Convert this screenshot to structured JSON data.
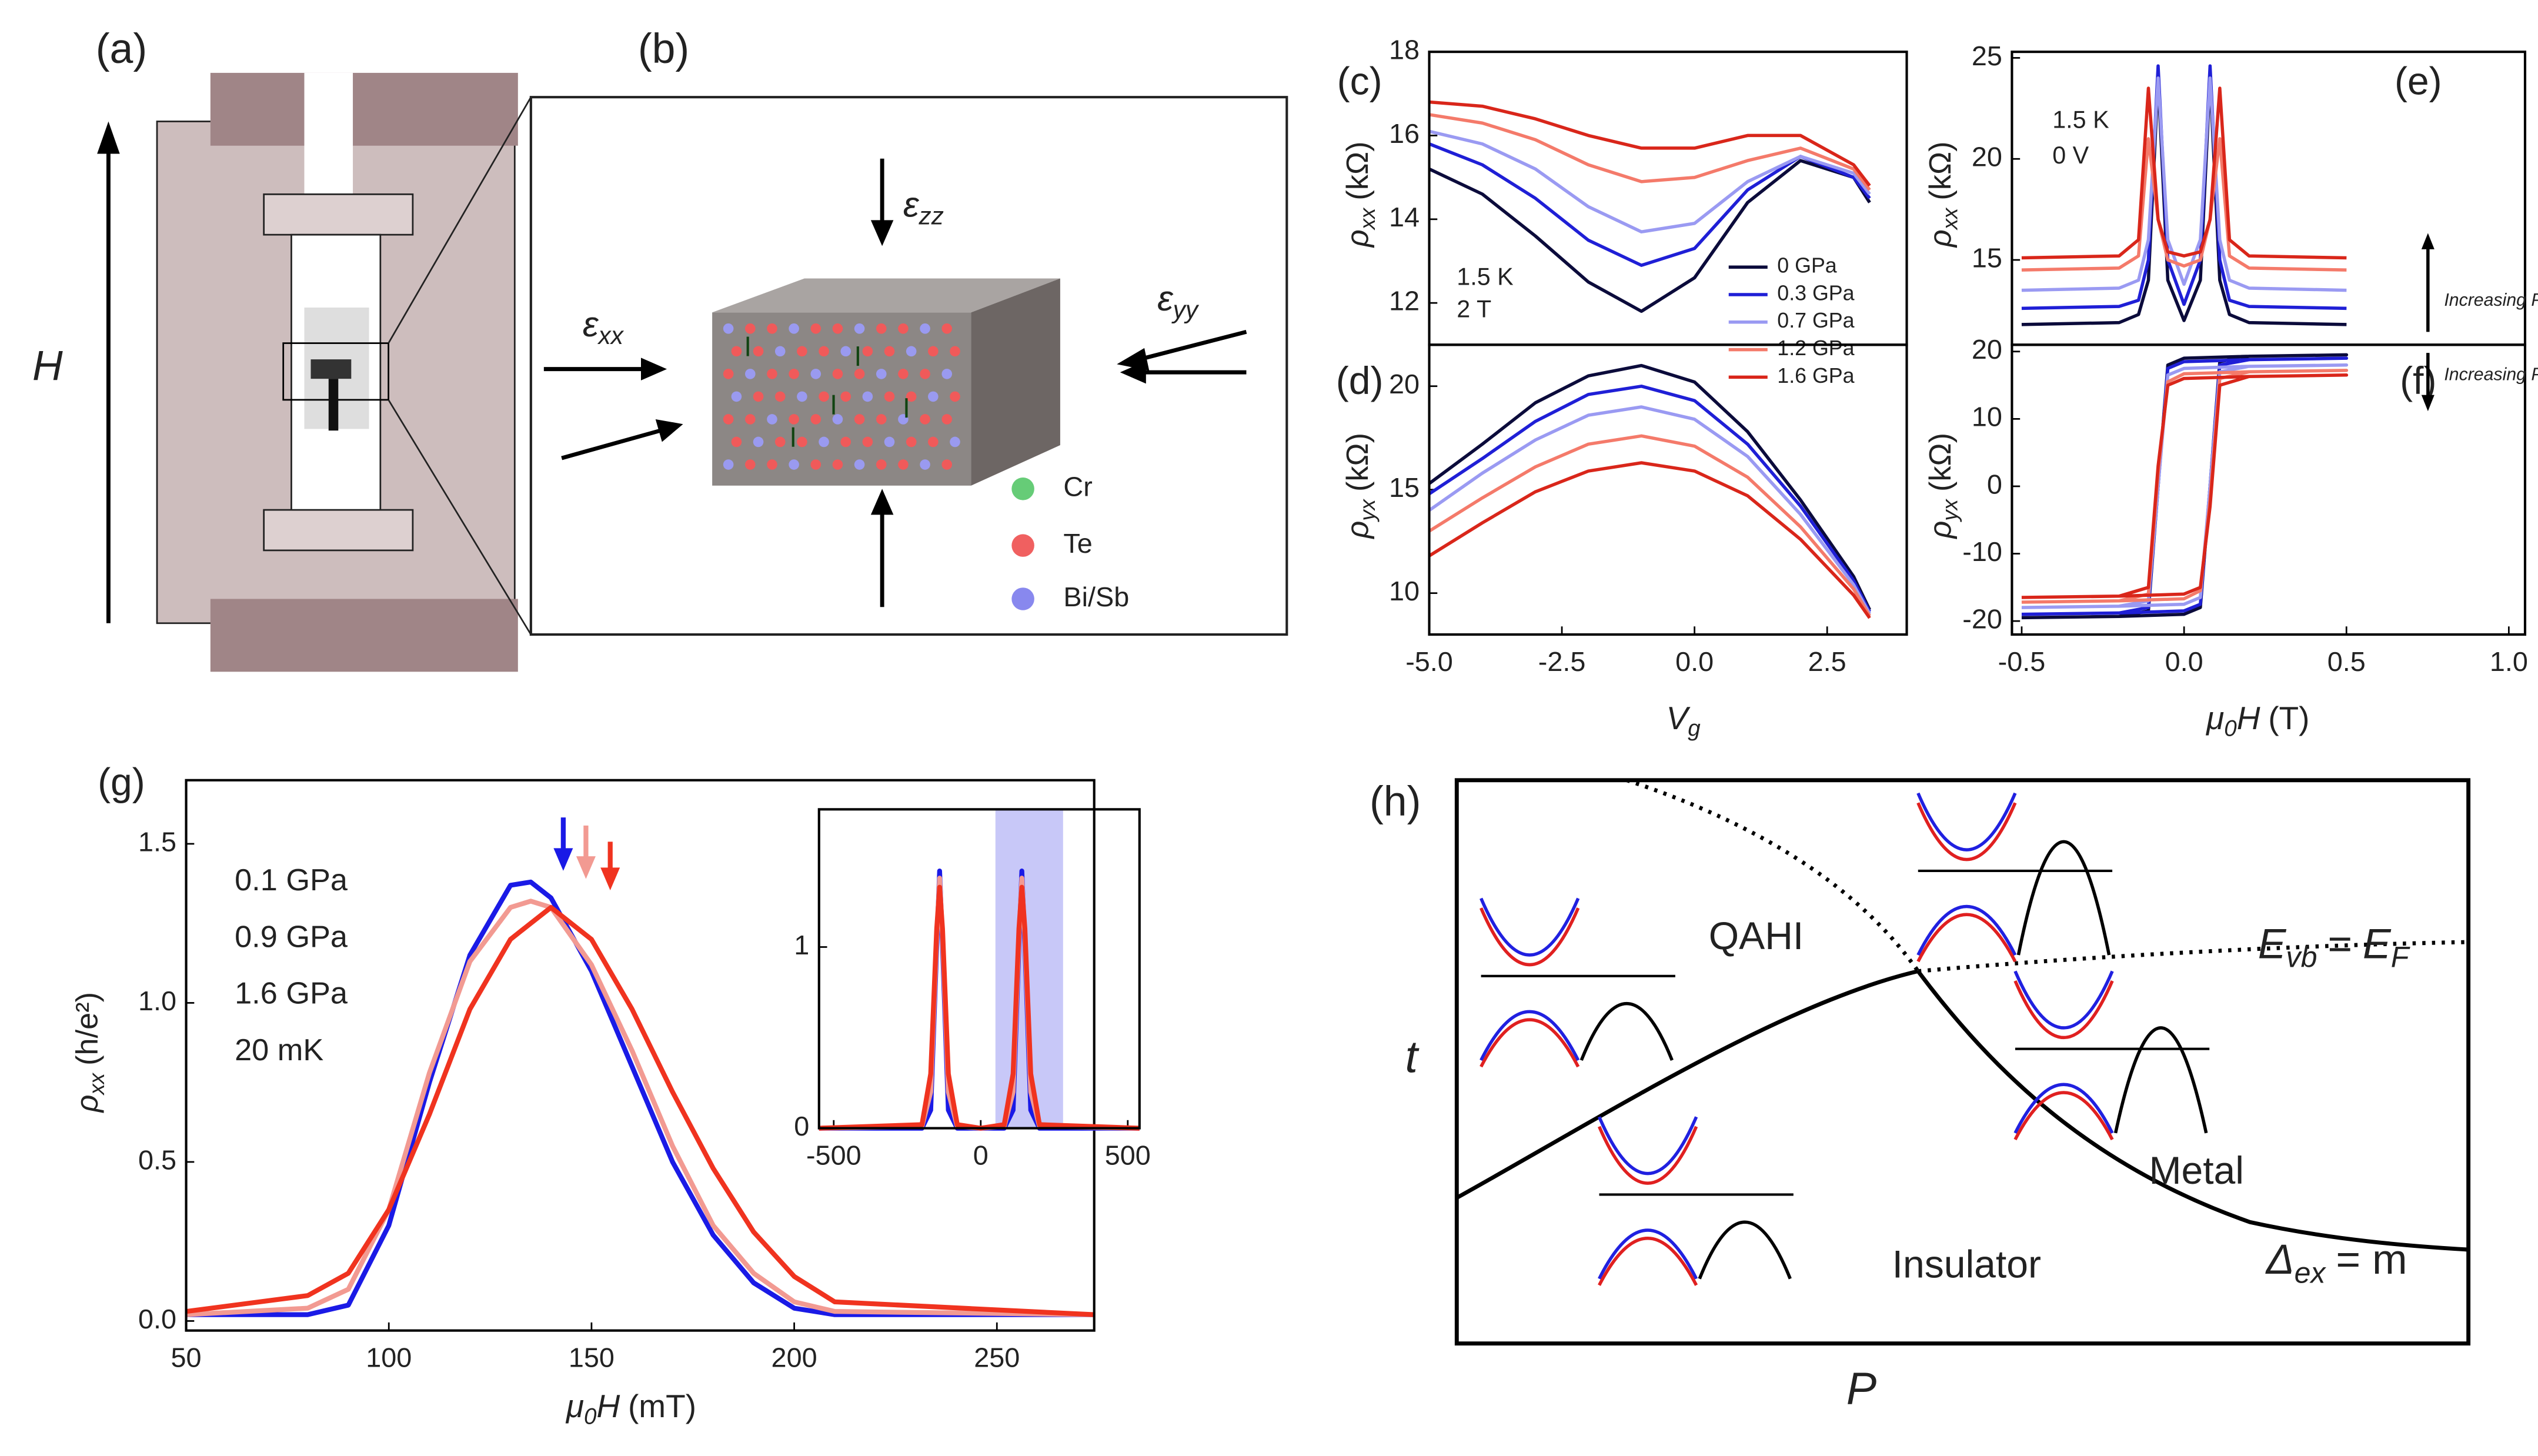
{
  "figure": {
    "a": {
      "label": "(a)",
      "field": "H"
    },
    "b": {
      "label": "(b)",
      "strain_zz": [
        {
          "text": "ε",
          "style": "italic"
        },
        {
          "text": "zz",
          "style": "sub"
        }
      ],
      "strain_xx": [
        {
          "text": "ε",
          "style": "italic"
        },
        {
          "text": "xx",
          "style": "sub"
        }
      ],
      "strain_yy": [
        {
          "text": "ε",
          "style": "italic"
        },
        {
          "text": "yy",
          "style": "sub"
        }
      ],
      "elements": [
        "Cr",
        "Te",
        "Bi/Sb"
      ]
    },
    "h": {
      "label": "(h)",
      "phases": [
        "QAHI",
        "Metal",
        "Insulator"
      ],
      "fermi": [
        {
          "text": "E",
          "style": "italic"
        },
        {
          "text": "vb",
          "style": "sub"
        },
        {
          "text": "="
        },
        {
          "text": "E",
          "style": "italic"
        },
        {
          "text": "F",
          "style": "sub"
        }
      ],
      "gap": [
        {
          "text": "Δ",
          "style": "italic"
        },
        {
          "text": "ex",
          "style": "sub"
        },
        {
          "text": "= m"
        }
      ],
      "ylabel": "t",
      "xlabel": "P"
    }
  },
  "chart_data": [
    {
      "type": "line",
      "panel": "(c)",
      "ylabel": [
        {
          "text": "ρ",
          "style": "italic"
        },
        {
          "text": "xx",
          "style": "sub"
        },
        {
          "text": "(kΩ)"
        }
      ],
      "annotations": [
        "1.5 K",
        "2 T"
      ],
      "legend": "lower right",
      "xlim": [
        -5,
        4
      ],
      "ylim": [
        11,
        18
      ],
      "yticks": [
        12,
        14,
        16,
        18
      ],
      "x": [
        -5,
        -4,
        -3,
        -2,
        -1,
        0,
        1,
        2,
        3,
        3.3
      ],
      "series": [
        {
          "name": "0 GPa",
          "color": "#0b0b3b",
          "values": [
            15.2,
            14.6,
            13.6,
            12.5,
            11.8,
            12.6,
            14.4,
            15.4,
            15.0,
            14.4
          ]
        },
        {
          "name": "0.3 GPa",
          "color": "#1f1fd6",
          "values": [
            15.8,
            15.3,
            14.5,
            13.5,
            12.9,
            13.3,
            14.7,
            15.5,
            15.0,
            14.5
          ]
        },
        {
          "name": "0.7 GPa",
          "color": "#9a9af2",
          "values": [
            16.1,
            15.8,
            15.2,
            14.3,
            13.7,
            13.9,
            14.9,
            15.5,
            15.1,
            14.6
          ]
        },
        {
          "name": "1.2 GPa",
          "color": "#f47a6a",
          "values": [
            16.5,
            16.3,
            15.9,
            15.3,
            14.9,
            15.0,
            15.4,
            15.7,
            15.2,
            14.7
          ]
        },
        {
          "name": "1.6 GPa",
          "color": "#d9261a",
          "values": [
            16.8,
            16.7,
            16.4,
            16.0,
            15.7,
            15.7,
            16.0,
            16.0,
            15.3,
            14.8
          ]
        }
      ]
    },
    {
      "type": "line",
      "panel": "(d)",
      "ylabel": [
        {
          "text": "ρ",
          "style": "italic"
        },
        {
          "text": "yx",
          "style": "sub"
        },
        {
          "text": "(kΩ)"
        }
      ],
      "xlabel": [
        {
          "text": "V",
          "style": "italic"
        },
        {
          "text": "g",
          "style": "sub"
        }
      ],
      "xlim": [
        -5,
        4
      ],
      "ylim": [
        8,
        22
      ],
      "xticks": [
        {
          "value": -5,
          "label": "-5.0"
        },
        {
          "value": -2.5,
          "label": "-2.5"
        },
        {
          "value": 0,
          "label": "0.0"
        },
        {
          "value": 2.5,
          "label": "2.5"
        }
      ],
      "yticks": [
        10,
        15,
        20
      ],
      "x": [
        -5,
        -4,
        -3,
        -2,
        -1,
        0,
        1,
        2,
        3,
        3.3
      ],
      "series": [
        {
          "color": "#0b0b3b",
          "values": [
            15.3,
            17.2,
            19.2,
            20.5,
            21.0,
            20.2,
            17.8,
            14.5,
            10.8,
            9.2
          ]
        },
        {
          "color": "#1f1fd6",
          "values": [
            14.8,
            16.5,
            18.3,
            19.6,
            20.0,
            19.3,
            17.2,
            14.2,
            10.6,
            9.1
          ]
        },
        {
          "color": "#9a9af2",
          "values": [
            14.0,
            15.8,
            17.4,
            18.6,
            19.0,
            18.4,
            16.6,
            13.8,
            10.4,
            9.0
          ]
        },
        {
          "color": "#f47a6a",
          "values": [
            13.0,
            14.6,
            16.1,
            17.2,
            17.6,
            17.1,
            15.6,
            13.2,
            10.2,
            8.9
          ]
        },
        {
          "color": "#d9261a",
          "values": [
            11.8,
            13.4,
            14.9,
            15.9,
            16.3,
            15.9,
            14.7,
            12.6,
            9.9,
            8.8
          ]
        }
      ]
    },
    {
      "type": "line",
      "panel": "(e)",
      "ylabel": [
        {
          "text": "ρ",
          "style": "italic"
        },
        {
          "text": "xx",
          "style": "sub"
        },
        {
          "text": "(kΩ)"
        }
      ],
      "annotations": [
        "1.5 K",
        "0 V",
        "Increasing P"
      ],
      "xlim": [
        -0.53,
        1.05
      ],
      "ylim": [
        10.8,
        25.3
      ],
      "yticks": [
        15,
        20,
        25
      ],
      "x": [
        -0.5,
        -0.2,
        -0.14,
        -0.11,
        -0.08,
        -0.05,
        0,
        0.05,
        0.08,
        0.11,
        0.14,
        0.2,
        0.5
      ],
      "series": [
        {
          "color": "#0b0b3b",
          "values": [
            11.8,
            11.9,
            12.3,
            14,
            24,
            14,
            12,
            14,
            24,
            14,
            12.3,
            11.9,
            11.8
          ]
        },
        {
          "color": "#1f1fd6",
          "values": [
            12.6,
            12.7,
            13,
            15,
            24.6,
            15,
            12.8,
            15,
            24.6,
            15,
            13,
            12.7,
            12.6
          ]
        },
        {
          "color": "#9a9af2",
          "values": [
            13.5,
            13.6,
            14,
            16,
            24,
            16,
            13.8,
            16,
            24,
            16,
            14,
            13.6,
            13.5
          ]
        },
        {
          "color": "#f47a6a",
          "values": [
            14.5,
            14.6,
            15.2,
            21,
            17,
            15,
            14.7,
            15,
            17,
            21,
            15.2,
            14.6,
            14.5
          ]
        },
        {
          "color": "#d9261a",
          "values": [
            15.1,
            15.2,
            16,
            23.5,
            17,
            15.4,
            15.2,
            15.4,
            17,
            23.5,
            16,
            15.2,
            15.1
          ]
        }
      ]
    },
    {
      "type": "line",
      "panel": "(f)",
      "ylabel": [
        {
          "text": "ρ",
          "style": "italic"
        },
        {
          "text": "yx",
          "style": "sub"
        },
        {
          "text": "(kΩ)"
        }
      ],
      "xlabel": [
        {
          "text": "μ",
          "style": "italic"
        },
        {
          "text": "0",
          "style": "sub"
        },
        {
          "text": "H",
          "style": "italic"
        },
        {
          "text": "(T)"
        }
      ],
      "annotations": [
        "Increasing P"
      ],
      "xlim": [
        -0.53,
        1.05
      ],
      "ylim": [
        -22,
        21
      ],
      "xticks": [
        {
          "value": -0.5,
          "label": "-0.5"
        },
        {
          "value": 0,
          "label": "0.0"
        },
        {
          "value": 0.5,
          "label": "0.5"
        },
        {
          "value": 1,
          "label": "1.0"
        }
      ],
      "yticks": [
        -20,
        -10,
        0,
        10,
        20
      ],
      "x": [
        -0.5,
        -0.2,
        0,
        0.05,
        0.08,
        0.11,
        0.2,
        0.5,
        0.2,
        0,
        -0.05,
        -0.08,
        -0.11,
        -0.2,
        -0.5
      ],
      "series": [
        {
          "color": "#0b0b3b",
          "values": [
            -19.5,
            -19.3,
            -19,
            -18,
            0,
            18.5,
            19.3,
            19.5,
            19.3,
            19,
            18,
            0,
            -18.5,
            -19.3,
            -19.5
          ]
        },
        {
          "color": "#1f1fd6",
          "values": [
            -19,
            -18.8,
            -18.5,
            -17.5,
            0,
            18,
            18.8,
            19,
            18.8,
            18.5,
            17.5,
            0,
            -18,
            -18.8,
            -19
          ]
        },
        {
          "color": "#9a9af2",
          "values": [
            -18,
            -17.8,
            -17.5,
            -16.5,
            0,
            17,
            17.8,
            18,
            17.8,
            17.5,
            16.5,
            0,
            -17,
            -17.8,
            -18
          ]
        },
        {
          "color": "#f47a6a",
          "values": [
            -17.2,
            -17,
            -16.7,
            -15.5,
            -2,
            16,
            17,
            17.2,
            17,
            16.7,
            15.5,
            2,
            -16,
            -17,
            -17.2
          ]
        },
        {
          "color": "#d9261a",
          "values": [
            -16.5,
            -16.3,
            -16,
            -15,
            -3,
            15,
            16.3,
            16.5,
            16.3,
            16,
            15,
            3,
            -15,
            -16.3,
            -16.5
          ]
        }
      ]
    },
    {
      "type": "line",
      "panel": "(g)",
      "ylabel": [
        {
          "text": "ρ",
          "style": "italic"
        },
        {
          "text": "xx",
          "style": "sub"
        },
        {
          "text": "(h/e²)"
        }
      ],
      "xlabel": [
        {
          "text": "μ",
          "style": "italic"
        },
        {
          "text": "0",
          "style": "sub"
        },
        {
          "text": "H",
          "style": "italic"
        },
        {
          "text": "(mT)"
        }
      ],
      "annotations": [
        "20 mK"
      ],
      "legend": "upper left",
      "xlim": [
        50,
        274
      ],
      "ylim": [
        -0.03,
        1.7
      ],
      "xticks": [
        50,
        100,
        150,
        200,
        250
      ],
      "yticks": [
        {
          "value": 0,
          "label": "0.0"
        },
        {
          "value": 0.5,
          "label": "0.5"
        },
        {
          "value": 1,
          "label": "1.0"
        },
        {
          "value": 1.5,
          "label": "1.5"
        }
      ],
      "x": [
        50,
        80,
        90,
        100,
        110,
        120,
        130,
        135,
        140,
        150,
        160,
        170,
        180,
        190,
        200,
        210,
        274
      ],
      "series": [
        {
          "name": "0.1 GPa",
          "color": "#1a1ae6",
          "values": [
            0.02,
            0.02,
            0.05,
            0.3,
            0.75,
            1.15,
            1.37,
            1.38,
            1.33,
            1.1,
            0.8,
            0.5,
            0.27,
            0.12,
            0.04,
            0.02,
            0.02
          ]
        },
        {
          "name": "0.9 GPa",
          "color": "#f29a92",
          "values": [
            0.02,
            0.04,
            0.1,
            0.35,
            0.78,
            1.13,
            1.3,
            1.32,
            1.3,
            1.12,
            0.85,
            0.55,
            0.3,
            0.15,
            0.06,
            0.03,
            0.02
          ]
        },
        {
          "name": "1.6 GPa",
          "color": "#f0331f",
          "values": [
            0.03,
            0.08,
            0.15,
            0.35,
            0.65,
            0.98,
            1.2,
            1.25,
            1.3,
            1.2,
            0.98,
            0.72,
            0.48,
            0.28,
            0.14,
            0.06,
            0.02
          ]
        }
      ]
    },
    {
      "type": "line",
      "xlim": [
        -550,
        540
      ],
      "ylim": [
        0,
        1.76
      ],
      "xticks": [
        -500,
        0,
        500
      ],
      "yticks": [
        0,
        1
      ],
      "shaded_range": [
        50,
        280
      ],
      "shade_color": "#c8c8f8",
      "x": [
        -550,
        -200,
        -170,
        -150,
        -140,
        -130,
        -110,
        -80,
        0,
        80,
        110,
        130,
        140,
        150,
        170,
        200,
        540
      ],
      "series": [
        {
          "color": "#1a1ae6",
          "values": [
            0,
            0,
            0.1,
            1.0,
            1.42,
            1.0,
            0.1,
            0,
            0,
            0,
            0.1,
            1.0,
            1.42,
            1.0,
            0.1,
            0,
            0
          ]
        },
        {
          "color": "#f29a92",
          "values": [
            0,
            0.01,
            0.2,
            1.05,
            1.38,
            1.05,
            0.2,
            0.01,
            0,
            0.01,
            0.2,
            1.05,
            1.38,
            1.05,
            0.2,
            0.01,
            0
          ]
        },
        {
          "color": "#f0331f",
          "values": [
            0,
            0.02,
            0.3,
            1.1,
            1.33,
            1.1,
            0.3,
            0.02,
            0,
            0.02,
            0.3,
            1.1,
            1.33,
            1.1,
            0.3,
            0.02,
            0
          ]
        }
      ]
    }
  ]
}
